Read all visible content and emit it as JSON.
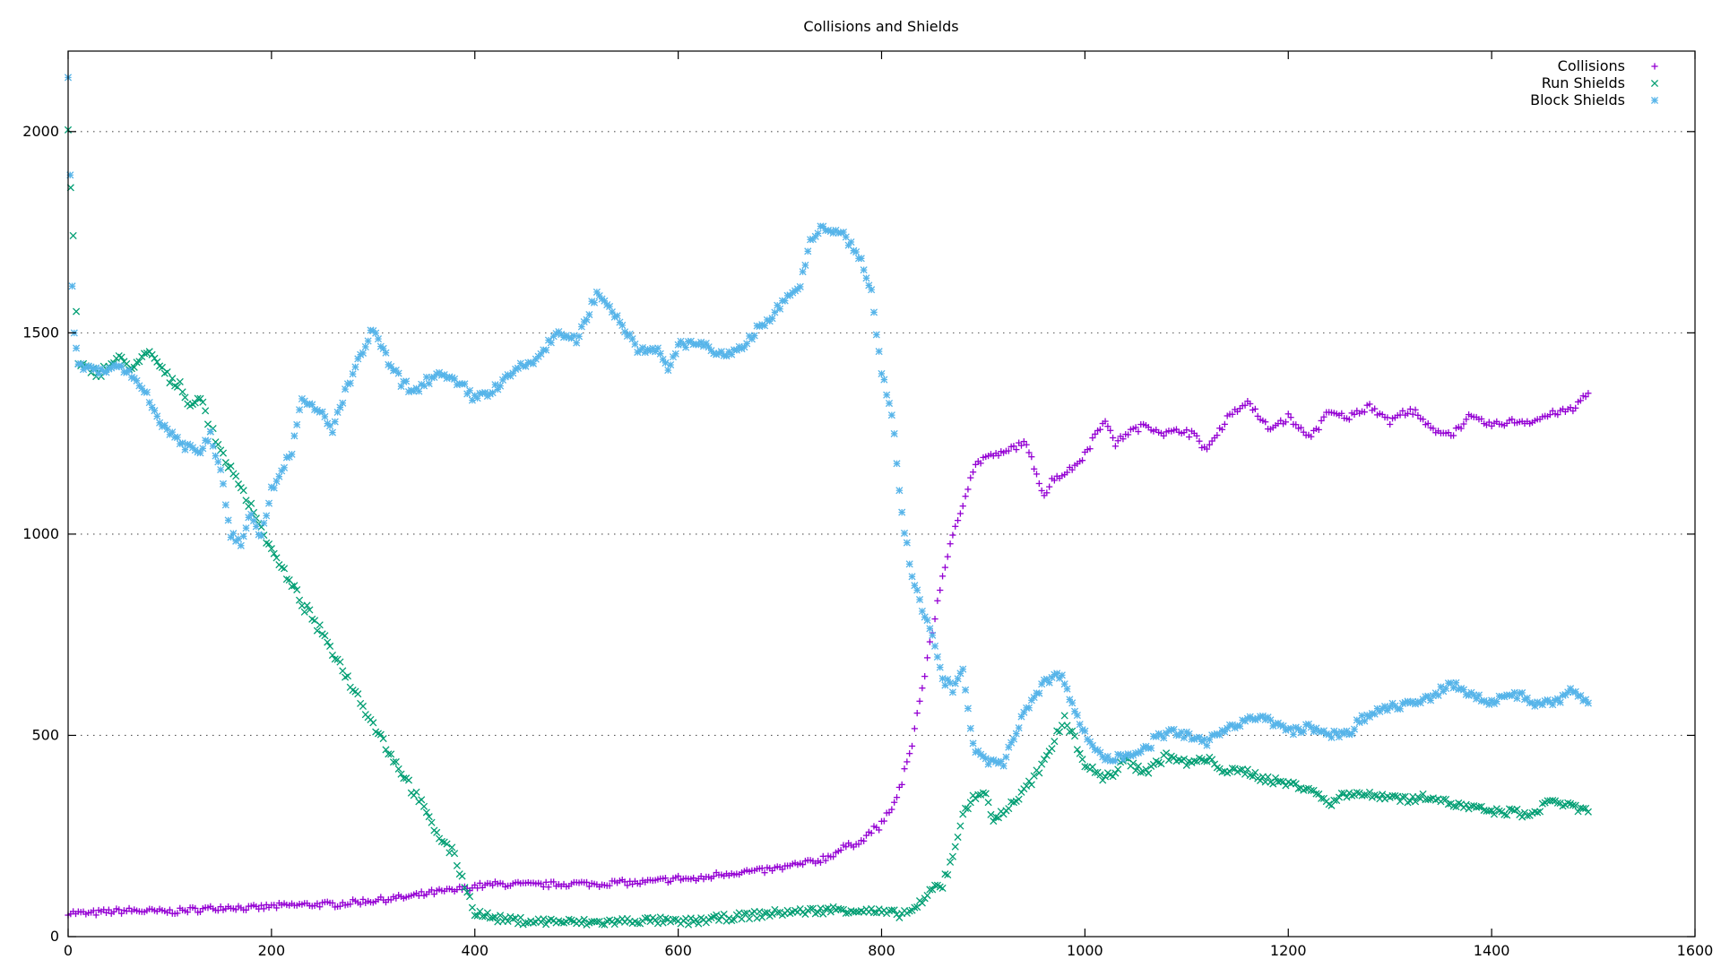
{
  "chart_data": {
    "type": "scatter",
    "title": "Collisions and Shields",
    "xlabel": "",
    "ylabel": "",
    "xlim": [
      0,
      1600
    ],
    "ylim": [
      0,
      2200
    ],
    "xticks": [
      0,
      200,
      400,
      600,
      800,
      1000,
      1200,
      1400,
      1600
    ],
    "yticks": [
      0,
      500,
      1000,
      1500,
      2000
    ],
    "grid": "horizontal dotted at y ticks",
    "legend_position": "top-right",
    "series": [
      {
        "name": "Collisions",
        "marker": "+",
        "color": "#9400d3",
        "points": [
          [
            0,
            60
          ],
          [
            20,
            57
          ],
          [
            40,
            62
          ],
          [
            60,
            65
          ],
          [
            80,
            63
          ],
          [
            100,
            62
          ],
          [
            120,
            66
          ],
          [
            140,
            70
          ],
          [
            160,
            74
          ],
          [
            180,
            70
          ],
          [
            200,
            75
          ],
          [
            220,
            78
          ],
          [
            240,
            80
          ],
          [
            260,
            80
          ],
          [
            280,
            85
          ],
          [
            300,
            90
          ],
          [
            320,
            95
          ],
          [
            340,
            100
          ],
          [
            360,
            110
          ],
          [
            380,
            115
          ],
          [
            400,
            125
          ],
          [
            420,
            130
          ],
          [
            440,
            130
          ],
          [
            460,
            128
          ],
          [
            480,
            130
          ],
          [
            500,
            132
          ],
          [
            520,
            130
          ],
          [
            540,
            135
          ],
          [
            560,
            133
          ],
          [
            580,
            138
          ],
          [
            600,
            145
          ],
          [
            620,
            142
          ],
          [
            640,
            155
          ],
          [
            660,
            160
          ],
          [
            680,
            163
          ],
          [
            700,
            170
          ],
          [
            720,
            180
          ],
          [
            740,
            190
          ],
          [
            760,
            215
          ],
          [
            780,
            240
          ],
          [
            800,
            280
          ],
          [
            810,
            320
          ],
          [
            820,
            380
          ],
          [
            830,
            480
          ],
          [
            840,
            620
          ],
          [
            850,
            760
          ],
          [
            860,
            900
          ],
          [
            870,
            990
          ],
          [
            880,
            1080
          ],
          [
            890,
            1160
          ],
          [
            900,
            1190
          ],
          [
            920,
            1200
          ],
          [
            940,
            1230
          ],
          [
            960,
            1100
          ],
          [
            970,
            1140
          ],
          [
            980,
            1150
          ],
          [
            990,
            1170
          ],
          [
            1000,
            1200
          ],
          [
            1020,
            1290
          ],
          [
            1030,
            1220
          ],
          [
            1040,
            1250
          ],
          [
            1060,
            1270
          ],
          [
            1080,
            1250
          ],
          [
            1100,
            1260
          ],
          [
            1120,
            1210
          ],
          [
            1140,
            1290
          ],
          [
            1160,
            1330
          ],
          [
            1180,
            1260
          ],
          [
            1200,
            1290
          ],
          [
            1220,
            1240
          ],
          [
            1240,
            1300
          ],
          [
            1260,
            1290
          ],
          [
            1280,
            1320
          ],
          [
            1300,
            1280
          ],
          [
            1320,
            1310
          ],
          [
            1340,
            1260
          ],
          [
            1360,
            1250
          ],
          [
            1380,
            1290
          ],
          [
            1400,
            1270
          ],
          [
            1420,
            1280
          ],
          [
            1440,
            1280
          ],
          [
            1460,
            1300
          ],
          [
            1480,
            1310
          ],
          [
            1495,
            1350
          ]
        ]
      },
      {
        "name": "Run Shields",
        "marker": "x",
        "color": "#009e73",
        "points": [
          [
            0,
            2000
          ],
          [
            5,
            1730
          ],
          [
            8,
            1550
          ],
          [
            10,
            1420
          ],
          [
            30,
            1400
          ],
          [
            50,
            1440
          ],
          [
            60,
            1410
          ],
          [
            80,
            1450
          ],
          [
            90,
            1420
          ],
          [
            100,
            1380
          ],
          [
            110,
            1370
          ],
          [
            120,
            1320
          ],
          [
            130,
            1340
          ],
          [
            140,
            1260
          ],
          [
            160,
            1160
          ],
          [
            180,
            1070
          ],
          [
            200,
            960
          ],
          [
            220,
            870
          ],
          [
            240,
            790
          ],
          [
            260,
            710
          ],
          [
            280,
            620
          ],
          [
            300,
            530
          ],
          [
            320,
            440
          ],
          [
            340,
            360
          ],
          [
            360,
            270
          ],
          [
            380,
            200
          ],
          [
            400,
            60
          ],
          [
            420,
            45
          ],
          [
            440,
            40
          ],
          [
            460,
            38
          ],
          [
            480,
            38
          ],
          [
            500,
            35
          ],
          [
            520,
            35
          ],
          [
            540,
            37
          ],
          [
            560,
            40
          ],
          [
            580,
            40
          ],
          [
            600,
            35
          ],
          [
            620,
            40
          ],
          [
            640,
            45
          ],
          [
            660,
            50
          ],
          [
            680,
            55
          ],
          [
            700,
            60
          ],
          [
            720,
            62
          ],
          [
            740,
            65
          ],
          [
            760,
            68
          ],
          [
            780,
            65
          ],
          [
            800,
            60
          ],
          [
            820,
            55
          ],
          [
            840,
            80
          ],
          [
            850,
            120
          ],
          [
            860,
            130
          ],
          [
            870,
            200
          ],
          [
            880,
            300
          ],
          [
            890,
            350
          ],
          [
            900,
            360
          ],
          [
            910,
            290
          ],
          [
            920,
            310
          ],
          [
            940,
            360
          ],
          [
            960,
            430
          ],
          [
            980,
            550
          ],
          [
            990,
            490
          ],
          [
            1000,
            430
          ],
          [
            1020,
            390
          ],
          [
            1040,
            440
          ],
          [
            1060,
            410
          ],
          [
            1080,
            450
          ],
          [
            1100,
            430
          ],
          [
            1120,
            440
          ],
          [
            1140,
            410
          ],
          [
            1160,
            410
          ],
          [
            1180,
            390
          ],
          [
            1200,
            380
          ],
          [
            1220,
            370
          ],
          [
            1240,
            330
          ],
          [
            1260,
            360
          ],
          [
            1280,
            350
          ],
          [
            1300,
            350
          ],
          [
            1320,
            340
          ],
          [
            1340,
            350
          ],
          [
            1360,
            330
          ],
          [
            1380,
            320
          ],
          [
            1400,
            310
          ],
          [
            1420,
            310
          ],
          [
            1440,
            300
          ],
          [
            1460,
            340
          ],
          [
            1480,
            320
          ],
          [
            1495,
            310
          ]
        ]
      },
      {
        "name": "Block Shields",
        "marker": "*",
        "color": "#56b4e9",
        "points": [
          [
            0,
            2140
          ],
          [
            2,
            1880
          ],
          [
            4,
            1620
          ],
          [
            6,
            1500
          ],
          [
            10,
            1420
          ],
          [
            30,
            1400
          ],
          [
            50,
            1420
          ],
          [
            70,
            1380
          ],
          [
            90,
            1280
          ],
          [
            110,
            1230
          ],
          [
            130,
            1200
          ],
          [
            140,
            1250
          ],
          [
            150,
            1160
          ],
          [
            160,
            1000
          ],
          [
            170,
            980
          ],
          [
            180,
            1060
          ],
          [
            190,
            990
          ],
          [
            200,
            1110
          ],
          [
            220,
            1210
          ],
          [
            230,
            1330
          ],
          [
            250,
            1300
          ],
          [
            260,
            1260
          ],
          [
            280,
            1400
          ],
          [
            300,
            1510
          ],
          [
            320,
            1400
          ],
          [
            340,
            1350
          ],
          [
            360,
            1400
          ],
          [
            380,
            1380
          ],
          [
            400,
            1340
          ],
          [
            420,
            1360
          ],
          [
            440,
            1410
          ],
          [
            460,
            1430
          ],
          [
            480,
            1500
          ],
          [
            500,
            1480
          ],
          [
            510,
            1540
          ],
          [
            520,
            1600
          ],
          [
            540,
            1540
          ],
          [
            560,
            1460
          ],
          [
            580,
            1460
          ],
          [
            590,
            1400
          ],
          [
            600,
            1470
          ],
          [
            620,
            1480
          ],
          [
            640,
            1440
          ],
          [
            660,
            1460
          ],
          [
            680,
            1510
          ],
          [
            700,
            1570
          ],
          [
            720,
            1620
          ],
          [
            730,
            1720
          ],
          [
            740,
            1760
          ],
          [
            760,
            1750
          ],
          [
            780,
            1680
          ],
          [
            790,
            1600
          ],
          [
            800,
            1400
          ],
          [
            810,
            1300
          ],
          [
            820,
            1050
          ],
          [
            830,
            900
          ],
          [
            840,
            820
          ],
          [
            850,
            750
          ],
          [
            860,
            640
          ],
          [
            870,
            620
          ],
          [
            880,
            660
          ],
          [
            890,
            470
          ],
          [
            900,
            440
          ],
          [
            920,
            430
          ],
          [
            940,
            560
          ],
          [
            960,
            630
          ],
          [
            970,
            650
          ],
          [
            980,
            640
          ],
          [
            990,
            560
          ],
          [
            1000,
            500
          ],
          [
            1020,
            440
          ],
          [
            1040,
            450
          ],
          [
            1060,
            470
          ],
          [
            1080,
            510
          ],
          [
            1100,
            500
          ],
          [
            1120,
            480
          ],
          [
            1140,
            520
          ],
          [
            1160,
            540
          ],
          [
            1180,
            540
          ],
          [
            1200,
            510
          ],
          [
            1220,
            520
          ],
          [
            1240,
            500
          ],
          [
            1260,
            510
          ],
          [
            1280,
            550
          ],
          [
            1300,
            570
          ],
          [
            1320,
            580
          ],
          [
            1340,
            590
          ],
          [
            1360,
            630
          ],
          [
            1380,
            600
          ],
          [
            1400,
            580
          ],
          [
            1420,
            610
          ],
          [
            1440,
            580
          ],
          [
            1460,
            580
          ],
          [
            1480,
            610
          ],
          [
            1495,
            580
          ]
        ]
      }
    ]
  }
}
